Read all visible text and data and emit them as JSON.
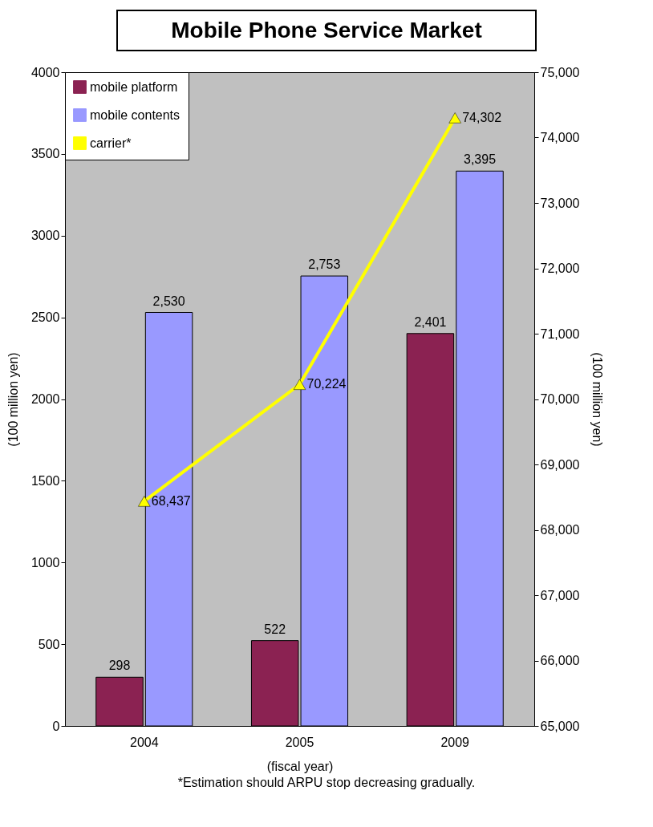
{
  "chart_data": {
    "type": "bar",
    "title": "Mobile Phone Service Market",
    "xlabel": "(fiscal year)",
    "ylabel": "(100 million yen)",
    "y2label": "(100 million yen)",
    "categories": [
      "2004",
      "2005",
      "2009"
    ],
    "series": [
      {
        "name": "mobile platform",
        "color": "#8b2252",
        "values": [
          298,
          522,
          2401
        ],
        "value_labels": [
          "298",
          "522",
          "2,401"
        ]
      },
      {
        "name": "mobile contents",
        "color": "#9999ff",
        "values": [
          2530,
          2753,
          3395
        ],
        "value_labels": [
          "2,530",
          "2,753",
          "3,395"
        ]
      },
      {
        "name": "carrier*",
        "type": "line",
        "axis": "y2",
        "color": "#ffff00",
        "values": [
          68437,
          70224,
          74302
        ],
        "value_labels": [
          "68,437",
          "70,224",
          "74,302"
        ]
      }
    ],
    "ylim": [
      0,
      4000
    ],
    "yticks": [
      0,
      500,
      1000,
      1500,
      2000,
      2500,
      3000,
      3500,
      4000
    ],
    "y2lim": [
      65000,
      75000
    ],
    "y2ticks": [
      {
        "value": 65000,
        "label": "65,000"
      },
      {
        "value": 66000,
        "label": "66,000"
      },
      {
        "value": 67000,
        "label": "67,000"
      },
      {
        "value": 68000,
        "label": "68,000"
      },
      {
        "value": 69000,
        "label": "69,000"
      },
      {
        "value": 70000,
        "label": "70,000"
      },
      {
        "value": 71000,
        "label": "71,000"
      },
      {
        "value": 72000,
        "label": "72,000"
      },
      {
        "value": 73000,
        "label": "73,000"
      },
      {
        "value": 74000,
        "label": "74,000"
      },
      {
        "value": 75000,
        "label": "75,000"
      }
    ],
    "legend": "top left",
    "marker": "triangle",
    "annotations": [
      "*Estimation should ARPU stop decreasing gradually."
    ]
  }
}
